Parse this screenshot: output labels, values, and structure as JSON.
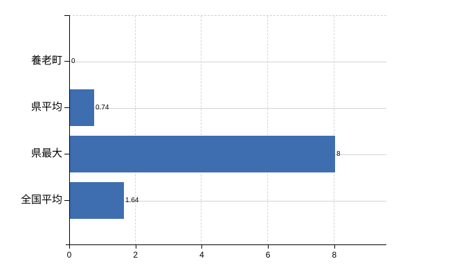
{
  "chart_data": {
    "type": "bar",
    "orientation": "horizontal",
    "title": "",
    "xlabel": "",
    "ylabel": "",
    "categories": [
      "養老町",
      "県平均",
      "県最大",
      "全国平均"
    ],
    "values": [
      0,
      0.74,
      8,
      1.64
    ],
    "value_labels": [
      "0",
      "0.74",
      "8",
      "1.64"
    ],
    "xticks": [
      0,
      2,
      4,
      6,
      8
    ],
    "xlim": [
      0,
      9.57
    ],
    "grid": true,
    "legend": "none"
  },
  "colors": {
    "bar": "#3e6eb0",
    "h_gridline": "#cfd6cf",
    "v_gridline": "#d9d2d9",
    "axis": "#000000",
    "text": "#000000",
    "background": "#ffffff"
  }
}
